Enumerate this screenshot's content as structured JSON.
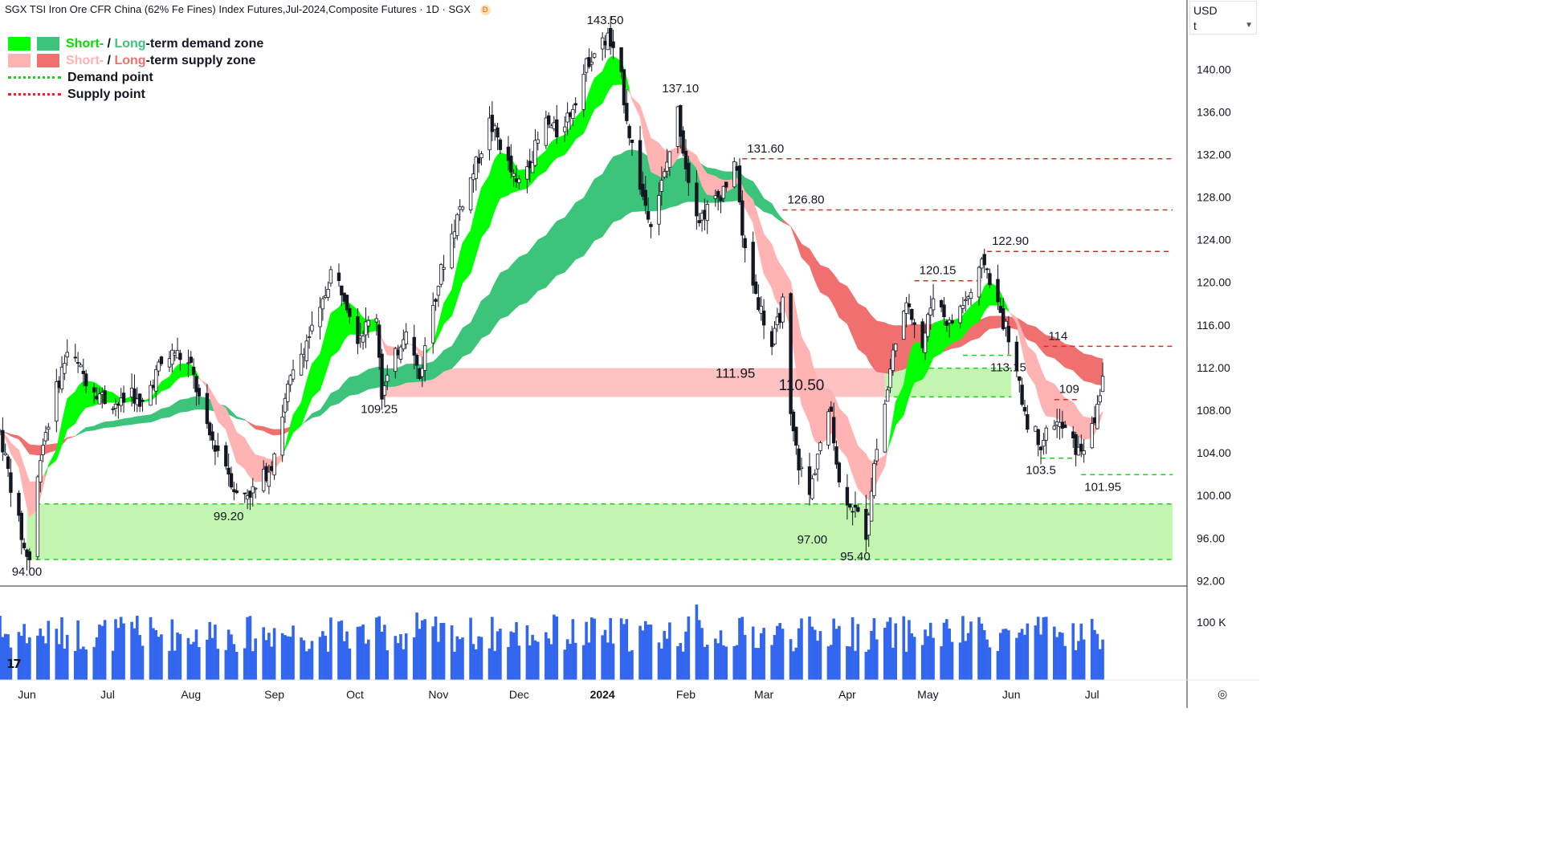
{
  "header": {
    "title": "SGX TSI Iron Ore CFR China (62% Fe Fines) Index Futures,Jul-2024,Composite Futures · 1D · SGX",
    "badge": "D"
  },
  "currency": {
    "label": "USD",
    "unit": "t"
  },
  "legend": {
    "row1": {
      "short": "Short-",
      "sep": " / ",
      "long": "Long",
      "rest": "-term demand zone"
    },
    "row2": {
      "short": "Short-",
      "sep": " / ",
      "long": "Long",
      "rest": "-term supply zone"
    },
    "row3": "Demand point",
    "row4": "Supply point"
  },
  "colors": {
    "up_candle": "#131722",
    "down_candle": "#131722",
    "short_demand": "#00ff00",
    "long_demand": "#3cc47a",
    "short_supply": "#ffb3b3",
    "long_supply": "#f07070",
    "orange_band": "#f08c1e",
    "volume": "#3366ee",
    "demand_line": "#22cc22",
    "supply_line": "#ee2222",
    "demand_zone_fill": "#c2f5b0",
    "supply_zone_fill": "#ffc2c2"
  },
  "tv_logo": "17",
  "chart_data": {
    "type": "candlestick",
    "y_axis": {
      "range": [
        91.5,
        146.5
      ],
      "ticks": [
        "92.00",
        "96.00",
        "100.00",
        "104.00",
        "108.00",
        "112.00",
        "116.00",
        "120.00",
        "124.00",
        "128.00",
        "132.00",
        "136.00",
        "140.00"
      ]
    },
    "volume_axis": {
      "ticks": [
        "100 K"
      ]
    },
    "x_axis": {
      "ticks": [
        "Jun",
        "Jul",
        "Aug",
        "Sep",
        "Oct",
        "Nov",
        "Dec",
        "2024",
        "Feb",
        "Mar",
        "Apr",
        "May",
        "Jun",
        "Jul"
      ]
    },
    "price_path": [
      [
        "2023-05-22",
        106
      ],
      [
        "2023-05-26",
        101
      ],
      [
        "2023-05-31",
        95
      ],
      [
        "2023-06-02",
        94
      ],
      [
        "2023-06-06",
        104
      ],
      [
        "2023-06-12",
        110
      ],
      [
        "2023-06-16",
        113.5
      ],
      [
        "2023-06-23",
        111
      ],
      [
        "2023-06-30",
        109
      ],
      [
        "2023-07-06",
        108.5
      ],
      [
        "2023-07-10",
        110
      ],
      [
        "2023-07-13",
        108
      ],
      [
        "2023-07-20",
        112
      ],
      [
        "2023-07-26",
        113.5
      ],
      [
        "2023-08-01",
        112
      ],
      [
        "2023-08-07",
        106
      ],
      [
        "2023-08-14",
        103
      ],
      [
        "2023-08-18",
        100
      ],
      [
        "2023-08-25",
        100.5
      ],
      [
        "2023-08-31",
        103
      ],
      [
        "2023-09-06",
        110
      ],
      [
        "2023-09-12",
        114
      ],
      [
        "2023-09-18",
        117
      ],
      [
        "2023-09-22",
        121
      ],
      [
        "2023-09-27",
        119
      ],
      [
        "2023-10-02",
        115
      ],
      [
        "2023-10-09",
        117
      ],
      [
        "2023-10-11",
        109.5
      ],
      [
        "2023-10-16",
        113
      ],
      [
        "2023-10-20",
        116
      ],
      [
        "2023-10-25",
        111
      ],
      [
        "2023-10-30",
        118
      ],
      [
        "2023-11-03",
        122
      ],
      [
        "2023-11-09",
        127
      ],
      [
        "2023-11-15",
        131
      ],
      [
        "2023-11-20",
        135
      ],
      [
        "2023-11-24",
        133
      ],
      [
        "2023-11-30",
        129
      ],
      [
        "2023-12-06",
        132
      ],
      [
        "2023-12-11",
        135
      ],
      [
        "2023-12-15",
        134
      ],
      [
        "2023-12-20",
        136
      ],
      [
        "2023-12-27",
        141
      ],
      [
        "2024-01-03",
        143
      ],
      [
        "2024-01-08",
        139
      ],
      [
        "2024-01-11",
        134
      ],
      [
        "2024-01-16",
        128
      ],
      [
        "2024-01-19",
        126
      ],
      [
        "2024-01-24",
        130
      ],
      [
        "2024-01-29",
        136
      ],
      [
        "2024-02-01",
        131
      ],
      [
        "2024-02-06",
        126
      ],
      [
        "2024-02-13",
        128
      ],
      [
        "2024-02-20",
        131
      ],
      [
        "2024-02-22",
        124
      ],
      [
        "2024-02-27",
        119
      ],
      [
        "2024-03-04",
        114
      ],
      [
        "2024-03-08",
        118
      ],
      [
        "2024-03-11",
        107
      ],
      [
        "2024-03-14",
        103
      ],
      [
        "2024-03-18",
        100
      ],
      [
        "2024-03-21",
        104
      ],
      [
        "2024-03-26",
        108
      ],
      [
        "2024-03-29",
        101
      ],
      [
        "2024-04-03",
        99
      ],
      [
        "2024-04-08",
        96.5
      ],
      [
        "2024-04-11",
        103
      ],
      [
        "2024-04-16",
        110
      ],
      [
        "2024-04-19",
        115
      ],
      [
        "2024-04-24",
        118
      ],
      [
        "2024-04-29",
        114
      ],
      [
        "2024-05-03",
        119
      ],
      [
        "2024-05-09",
        116
      ],
      [
        "2024-05-14",
        118
      ],
      [
        "2024-05-17",
        119
      ],
      [
        "2024-05-22",
        122
      ],
      [
        "2024-05-28",
        117
      ],
      [
        "2024-05-31",
        115
      ],
      [
        "2024-06-04",
        110
      ],
      [
        "2024-06-07",
        107
      ],
      [
        "2024-06-12",
        105
      ],
      [
        "2024-06-17",
        107
      ],
      [
        "2024-06-21",
        106
      ],
      [
        "2024-06-26",
        104
      ],
      [
        "2024-07-01",
        106
      ],
      [
        "2024-07-05",
        111
      ]
    ],
    "labels": [
      {
        "text": "143.50",
        "date": "2024-01-02",
        "price": 143.5,
        "pos": "above"
      },
      {
        "text": "137.10",
        "date": "2024-01-30",
        "price": 137.1,
        "pos": "above"
      },
      {
        "text": "131.60",
        "date": "2024-02-22",
        "price": 131.6,
        "pos": "above-right"
      },
      {
        "text": "126.80",
        "date": "2024-03-08",
        "price": 126.8,
        "pos": "above-right"
      },
      {
        "text": "122.90",
        "date": "2024-05-23",
        "price": 122.9,
        "pos": "above-right"
      },
      {
        "text": "120.15",
        "date": "2024-04-26",
        "price": 120.15,
        "pos": "above-right"
      },
      {
        "text": "114",
        "date": "2024-06-13",
        "price": 114,
        "pos": "above-right"
      },
      {
        "text": "113.15",
        "date": "2024-05-23",
        "price": 113.15,
        "pos": "below-right"
      },
      {
        "text": "111.95",
        "date": "2024-02-28",
        "price": 111.95,
        "pos": "left-big"
      },
      {
        "text": "110.50",
        "date": "2024-03-15",
        "price": 110.5,
        "pos": "big"
      },
      {
        "text": "109",
        "date": "2024-06-17",
        "price": 109,
        "pos": "above-right"
      },
      {
        "text": "109.25",
        "date": "2023-10-10",
        "price": 109.25,
        "pos": "below"
      },
      {
        "text": "103.5",
        "date": "2024-06-12",
        "price": 103.5,
        "pos": "below"
      },
      {
        "text": "101.95",
        "date": "2024-06-27",
        "price": 101.95,
        "pos": "below-right"
      },
      {
        "text": "99.20",
        "date": "2023-08-15",
        "price": 99.2,
        "pos": "below"
      },
      {
        "text": "97.00",
        "date": "2024-03-19",
        "price": 97.0,
        "pos": "below"
      },
      {
        "text": "95.40",
        "date": "2024-04-04",
        "price": 95.4,
        "pos": "below"
      },
      {
        "text": "94.00",
        "date": "2023-06-01",
        "price": 94.0,
        "pos": "below"
      }
    ],
    "demand_zones": [
      {
        "from": "2023-06-01",
        "to": "2024-07-31",
        "low": 94.0,
        "high": 99.2
      },
      {
        "from": "2024-04-15",
        "to": "2024-06-01",
        "low": 109.25,
        "high": 111.95
      }
    ],
    "supply_zones": [
      {
        "from": "2023-10-10",
        "to": "2024-04-15",
        "low": 109.25,
        "high": 111.95
      }
    ],
    "supply_points": [
      {
        "from": "2024-02-22",
        "to": "2024-07-31",
        "price": 131.6
      },
      {
        "from": "2024-03-08",
        "to": "2024-07-31",
        "price": 126.8
      },
      {
        "from": "2024-05-23",
        "to": "2024-07-31",
        "price": 122.9
      },
      {
        "from": "2024-04-26",
        "to": "2024-05-22",
        "price": 120.15
      },
      {
        "from": "2024-06-13",
        "to": "2024-07-31",
        "price": 114
      },
      {
        "from": "2024-06-17",
        "to": "2024-06-26",
        "price": 109
      }
    ],
    "demand_points": [
      {
        "from": "2024-06-27",
        "to": "2024-07-31",
        "price": 101.95
      },
      {
        "from": "2024-06-12",
        "to": "2024-06-25",
        "price": 103.5
      },
      {
        "from": "2024-05-14",
        "to": "2024-06-01",
        "price": 113.15
      }
    ]
  }
}
